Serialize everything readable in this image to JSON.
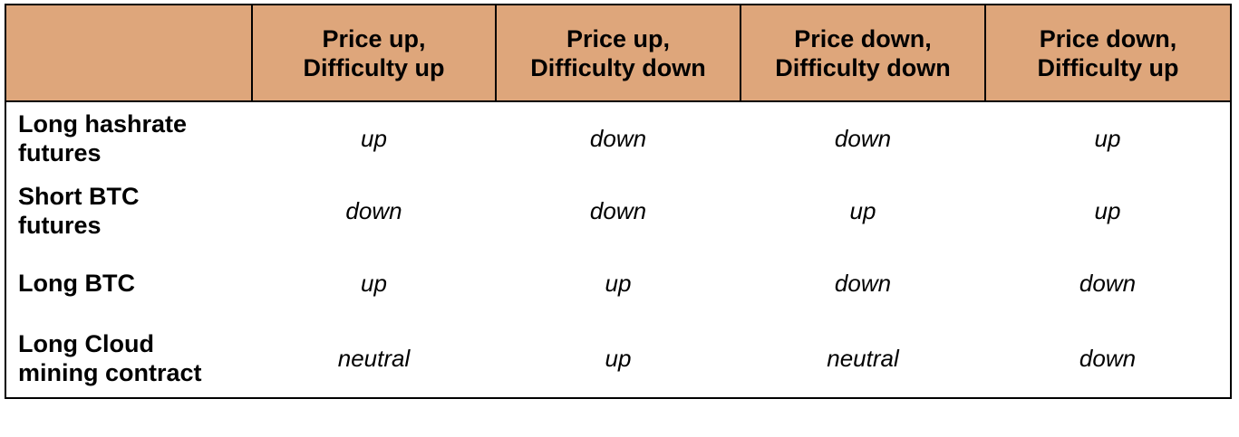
{
  "table": {
    "header_color": "#dea67b",
    "corner_label": "",
    "columns": [
      {
        "line1": "Price up,",
        "line2": "Difficulty up"
      },
      {
        "line1": "Price up,",
        "line2": "Difficulty down"
      },
      {
        "line1": "Price down,",
        "line2": "Difficulty down"
      },
      {
        "line1": "Price down,",
        "line2": "Difficulty up"
      }
    ],
    "rows": [
      {
        "label_line1": "Long hashrate",
        "label_line2": "futures",
        "values": [
          "up",
          "down",
          "down",
          "up"
        ]
      },
      {
        "label_line1": "Short BTC",
        "label_line2": "futures",
        "values": [
          "down",
          "down",
          "up",
          "up"
        ]
      },
      {
        "label_line1": "Long BTC",
        "label_line2": "",
        "values": [
          "up",
          "up",
          "down",
          "down"
        ]
      },
      {
        "label_line1": "Long Cloud",
        "label_line2": "mining contract",
        "values": [
          "neutral",
          "up",
          "neutral",
          "down"
        ]
      }
    ]
  }
}
